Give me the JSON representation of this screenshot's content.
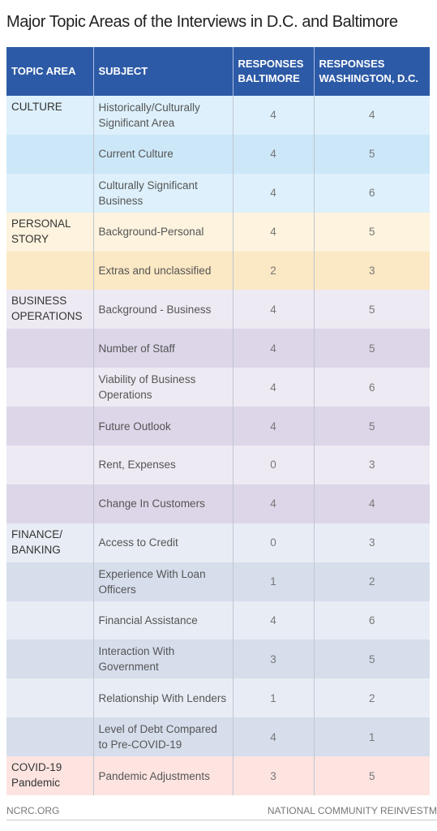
{
  "title": "Major Topic Areas of the Interviews in D.C. and Baltimore",
  "table": {
    "columns": [
      "TOPIC AREA",
      "SUBJECT",
      "RESPONSES BALTIMORE",
      "RESPONSES WASHINGTON, D.C."
    ],
    "groups": [
      {
        "topic": "CULTURE",
        "rows": [
          {
            "subject": "Historically/Culturally Significant Area",
            "baltimore": 4,
            "dc": 4
          },
          {
            "subject": "Current Culture",
            "baltimore": 4,
            "dc": 5
          },
          {
            "subject": "Culturally Significant Business",
            "baltimore": 4,
            "dc": 6
          }
        ]
      },
      {
        "topic": "PERSONAL STORY",
        "rows": [
          {
            "subject": "Background-Personal",
            "baltimore": 4,
            "dc": 5
          },
          {
            "subject": "Extras and unclassified",
            "baltimore": 2,
            "dc": 3
          }
        ]
      },
      {
        "topic": "BUSINESS OPERATIONS",
        "rows": [
          {
            "subject": "Background - Business",
            "baltimore": 4,
            "dc": 5
          },
          {
            "subject": "Number of Staff",
            "baltimore": 4,
            "dc": 5
          },
          {
            "subject": "Viability of Business Operations",
            "baltimore": 4,
            "dc": 6
          },
          {
            "subject": "Future Outlook",
            "baltimore": 4,
            "dc": 5
          },
          {
            "subject": "Rent, Expenses",
            "baltimore": 0,
            "dc": 3
          },
          {
            "subject": "Change In Customers",
            "baltimore": 4,
            "dc": 4
          }
        ]
      },
      {
        "topic": "FINANCE/ BANKING",
        "rows": [
          {
            "subject": "Access to Credit",
            "baltimore": 0,
            "dc": 3
          },
          {
            "subject": "Experience With Loan Officers",
            "baltimore": 1,
            "dc": 2
          },
          {
            "subject": "Financial Assistance",
            "baltimore": 4,
            "dc": 6
          },
          {
            "subject": "Interaction With Government",
            "baltimore": 3,
            "dc": 5
          },
          {
            "subject": "Relationship With Lenders",
            "baltimore": 1,
            "dc": 2
          },
          {
            "subject": "Level of Debt Compared to Pre-COVID-19",
            "baltimore": 4,
            "dc": 1
          }
        ]
      },
      {
        "topic": "COVID-19 Pandemic",
        "rows": [
          {
            "subject": "Pandemic Adjustments",
            "baltimore": 3,
            "dc": 5
          }
        ]
      }
    ]
  },
  "footer": {
    "left": "NCRC.ORG",
    "right": "NATIONAL COMMUNITY REINVESTM"
  }
}
